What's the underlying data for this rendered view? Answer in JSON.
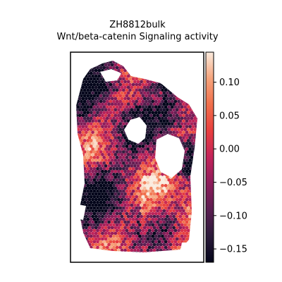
{
  "chart_data": {
    "type": "heatmap",
    "title_lines": [
      "ZH8812bulk",
      "Wnt/beta-catenin Signaling activity"
    ],
    "xlabel": "",
    "ylabel": "",
    "colorbar": {
      "range": [
        -0.17,
        0.145
      ],
      "ticks": [
        0.1,
        0.05,
        0.0,
        -0.05,
        -0.1,
        -0.15
      ],
      "tick_labels": [
        "0.10",
        "0.05",
        "0.00",
        "−0.05",
        "−0.10",
        "−0.15"
      ],
      "colormap": "rocket",
      "stops": [
        "#03051a",
        "#2b1a3a",
        "#5b1e51",
        "#8e1c5a",
        "#c3245a",
        "#e83f3f",
        "#f06f4b",
        "#f6a47c",
        "#faebdd"
      ]
    },
    "grid": false,
    "legend": "none",
    "spots": "hexagonal spot grid of a tissue section; values vary from about -0.15 (dark) to about 0.12 (light)"
  }
}
